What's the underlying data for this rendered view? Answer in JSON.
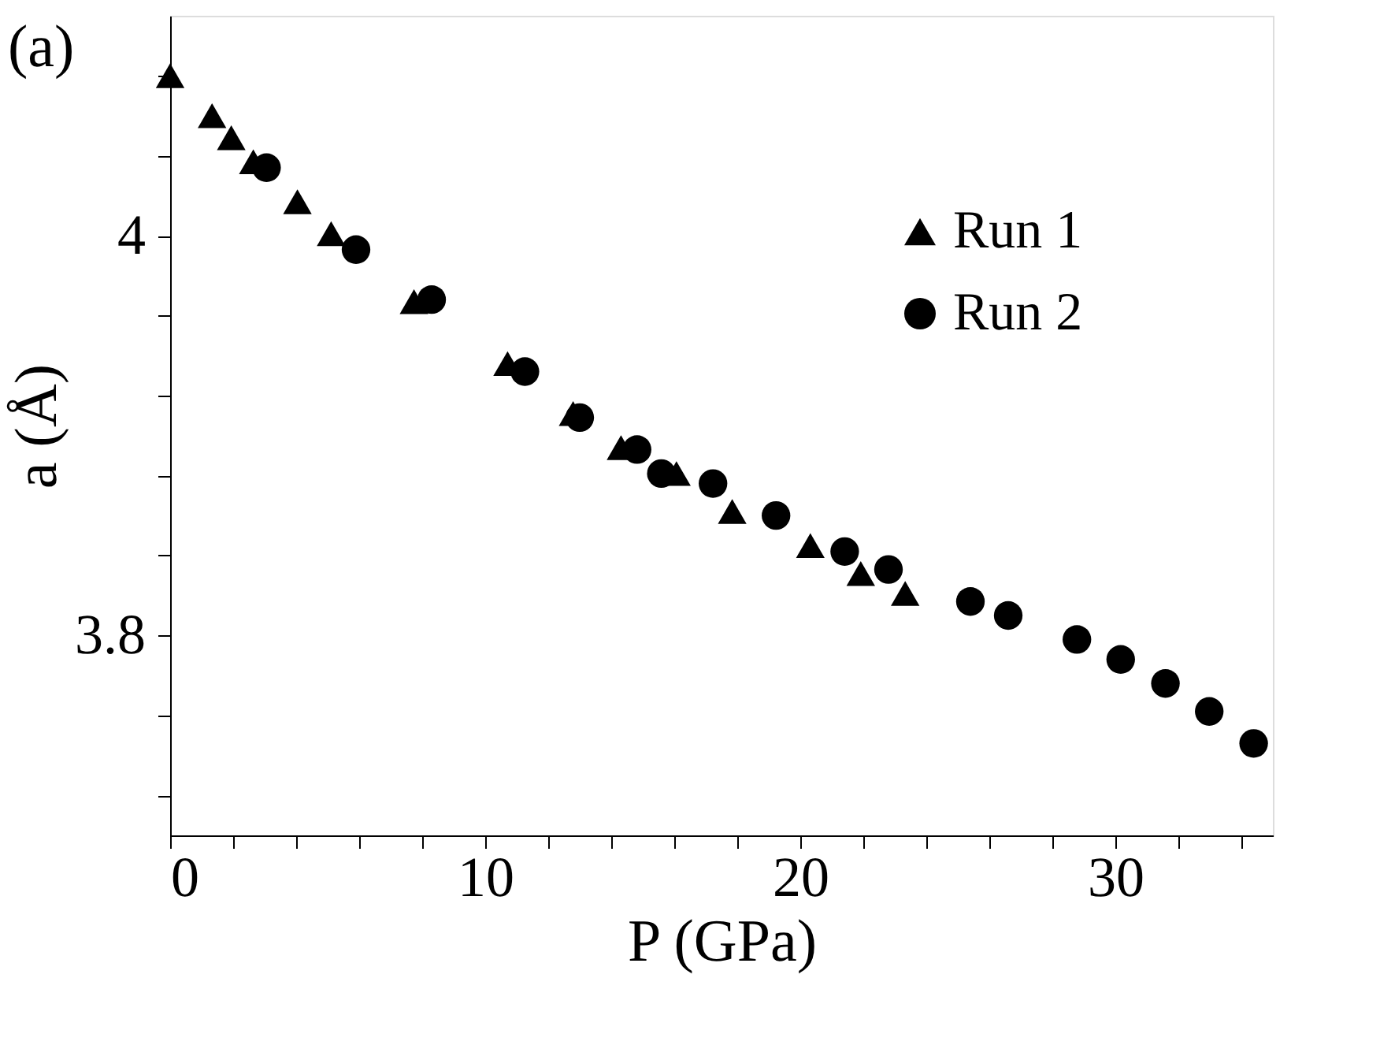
{
  "chart_data": {
    "type": "scatter",
    "annotations": [
      "(a)"
    ],
    "xlabel": "P (GPa)",
    "ylabel": "a (Å)",
    "xlim": [
      0,
      35
    ],
    "ylim": [
      3.7,
      4.11
    ],
    "xticks": [
      0,
      {
        "value": 2,
        "label": null
      },
      {
        "value": 4,
        "label": null
      },
      {
        "value": 6,
        "label": null
      },
      {
        "value": 8,
        "label": null
      },
      10,
      {
        "value": 12,
        "label": null
      },
      {
        "value": 14,
        "label": null
      },
      {
        "value": 16,
        "label": null
      },
      {
        "value": 18,
        "label": null
      },
      20,
      {
        "value": 22,
        "label": null
      },
      {
        "value": 24,
        "label": null
      },
      {
        "value": 26,
        "label": null
      },
      {
        "value": 28,
        "label": null
      },
      30,
      {
        "value": 32,
        "label": null
      },
      {
        "value": 34,
        "label": null
      }
    ],
    "yticks": [
      {
        "value": 3.72,
        "label": null
      },
      {
        "value": 3.76,
        "label": null
      },
      {
        "value": 3.8,
        "label": "3.8"
      },
      {
        "value": 3.84,
        "label": null
      },
      {
        "value": 3.88,
        "label": null
      },
      {
        "value": 3.92,
        "label": null
      },
      {
        "value": 3.96,
        "label": null
      },
      {
        "value": 4.0,
        "label": "4"
      },
      {
        "value": 4.04,
        "label": null
      },
      {
        "value": 4.08,
        "label": null
      }
    ],
    "grid": false,
    "legend": "top right",
    "series": [
      {
        "name": "Run 1",
        "color": "#000000",
        "marker": "triangle",
        "x": [
          0,
          1.33,
          1.94,
          2.64,
          4.04,
          5.11,
          7.74,
          10.71,
          12.79,
          14.31,
          16.07,
          17.84,
          20.32,
          21.92,
          23.33
        ],
        "values": [
          4.08,
          4.06,
          4.049,
          4.037,
          4.017,
          4.001,
          3.967,
          3.936,
          3.911,
          3.894,
          3.881,
          3.862,
          3.845,
          3.831,
          3.821
        ]
      },
      {
        "name": "Run 2",
        "color": "#000000",
        "marker": "circle",
        "x": [
          3.06,
          5.9,
          8.3,
          11.26,
          13.0,
          14.82,
          15.59,
          17.23,
          19.23,
          21.41,
          22.8,
          25.4,
          26.6,
          28.78,
          30.17,
          31.59,
          32.98,
          34.39
        ],
        "values": [
          4.034,
          3.993,
          3.968,
          3.932,
          3.909,
          3.893,
          3.881,
          3.876,
          3.86,
          3.842,
          3.833,
          3.817,
          3.81,
          3.798,
          3.788,
          3.776,
          3.762,
          3.746
        ]
      }
    ]
  }
}
